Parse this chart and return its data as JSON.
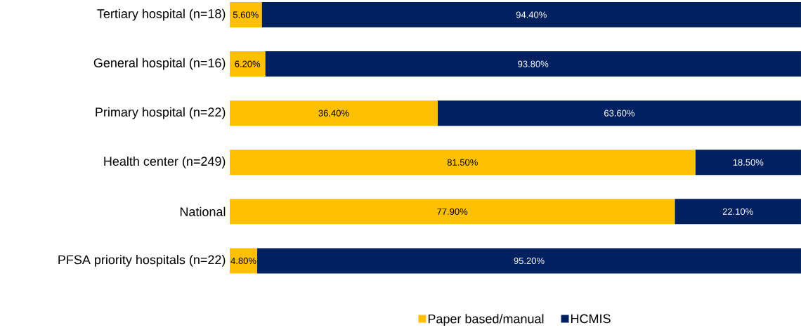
{
  "chart_data": {
    "type": "bar",
    "orientation": "horizontal",
    "stacked": true,
    "categories": [
      "Tertiary hospital (n=18)",
      "General hospital (n=16)",
      "Primary hospital (n=22)",
      "Health center (n=249)",
      "National",
      "PFSA priority hospitals (n=22)"
    ],
    "series": [
      {
        "name": "Paper based/manual",
        "color": "#ffc000",
        "values": [
          5.6,
          6.2,
          36.4,
          81.5,
          77.9,
          4.8
        ],
        "value_labels": [
          "5.60%",
          "6.20%",
          "36.40%",
          "81.50%",
          "77.90%",
          "4.80%"
        ]
      },
      {
        "name": "HCMIS",
        "color": "#002060",
        "values": [
          94.4,
          93.8,
          63.6,
          18.5,
          22.1,
          95.2
        ],
        "value_labels": [
          "94.40%",
          "93.80%",
          "63.60%",
          "18.50%",
          "22.10%",
          "95.20%"
        ]
      }
    ],
    "legend": "bottom"
  }
}
